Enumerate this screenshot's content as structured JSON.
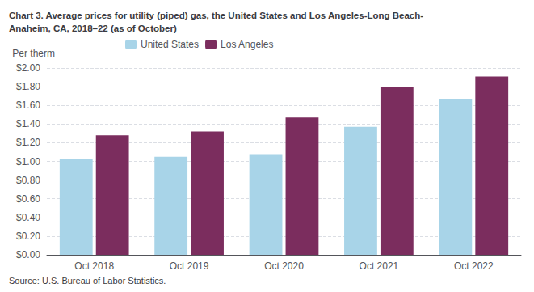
{
  "chart_data": {
    "type": "bar",
    "title": "Chart 3. Average prices for utility (piped) gas, the United States and Los Angeles-Long Beach-\nAnaheim, CA, 2018–22 (as of October)",
    "ylabel": "Per therm",
    "source": "Source: U.S. Bureau of Labor Statistics.",
    "categories": [
      "Oct 2018",
      "Oct 2019",
      "Oct 2020",
      "Oct 2021",
      "Oct 2022"
    ],
    "series": [
      {
        "name": "United States",
        "color": "#a8d4e8",
        "values": [
          1.03,
          1.05,
          1.07,
          1.37,
          1.67
        ]
      },
      {
        "name": "Los Angeles",
        "color": "#7B2D5E",
        "values": [
          1.28,
          1.32,
          1.47,
          1.8,
          1.91
        ]
      }
    ],
    "ylim": [
      0,
      2.0
    ],
    "yticks": [
      {
        "value": 0.0,
        "label": "$0.00"
      },
      {
        "value": 0.2,
        "label": "$0.20"
      },
      {
        "value": 0.4,
        "label": "$0.40"
      },
      {
        "value": 0.6,
        "label": "$0.60"
      },
      {
        "value": 0.8,
        "label": "$0.80"
      },
      {
        "value": 1.0,
        "label": "$1.00"
      },
      {
        "value": 1.2,
        "label": "$1.20"
      },
      {
        "value": 1.4,
        "label": "$1.40"
      },
      {
        "value": 1.6,
        "label": "$1.60"
      },
      {
        "value": 1.8,
        "label": "$1.80"
      },
      {
        "value": 2.0,
        "label": "$2.00"
      }
    ],
    "grid": true,
    "legend": "top"
  }
}
